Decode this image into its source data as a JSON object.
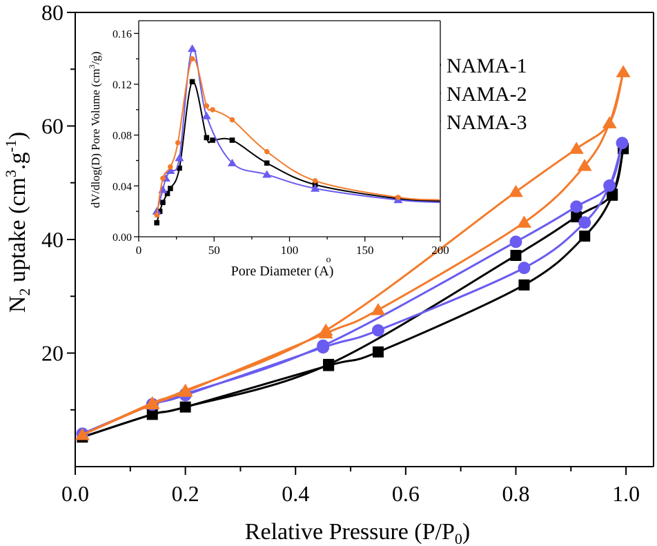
{
  "chart_data": [
    {
      "type": "line",
      "role": "main",
      "xlabel": "Relative Pressure (P/P",
      "xlabel_sub": "0",
      "xlabel_end": ")",
      "ylabel": {
        "pre": "N",
        "sub": "2",
        "mid": " uptake (cm",
        "sup1": "3",
        "mid2": ".g",
        "sup2": "-1",
        "post": ")"
      },
      "xlim": [
        0.0,
        1.05
      ],
      "ylim": [
        0,
        80
      ],
      "xticks": [
        "0.0",
        "0.2",
        "0.4",
        "0.6",
        "0.8",
        "1.0"
      ],
      "yticks": [
        "20",
        "40",
        "60",
        "80"
      ],
      "legend_position": "top-right",
      "series": [
        {
          "name": "NAMA-1",
          "color": "#000000",
          "marker": "square",
          "adsorption": [
            [
              0.013,
              5.2
            ],
            [
              0.14,
              9.2
            ],
            [
              0.2,
              10.5
            ],
            [
              0.46,
              18.0
            ],
            [
              0.8,
              37.2
            ],
            [
              0.91,
              44.0
            ],
            [
              0.975,
              48.0
            ],
            [
              0.995,
              56.0
            ]
          ],
          "desorption": [
            [
              0.995,
              56.0
            ],
            [
              0.975,
              47.8
            ],
            [
              0.925,
              40.6
            ],
            [
              0.815,
              32.0
            ],
            [
              0.55,
              20.2
            ],
            [
              0.46,
              17.8
            ],
            [
              0.2,
              10.5
            ],
            [
              0.14,
              9.2
            ],
            [
              0.013,
              5.2
            ]
          ]
        },
        {
          "name": "NAMA-2",
          "color": "#6a5cf0",
          "marker": "circle",
          "adsorption": [
            [
              0.013,
              5.8
            ],
            [
              0.14,
              11.0
            ],
            [
              0.2,
              12.8
            ],
            [
              0.45,
              21.3
            ],
            [
              0.8,
              39.6
            ],
            [
              0.91,
              45.8
            ],
            [
              0.97,
              49.5
            ],
            [
              0.993,
              57.0
            ]
          ],
          "desorption": [
            [
              0.993,
              57.0
            ],
            [
              0.97,
              49.5
            ],
            [
              0.925,
              43.0
            ],
            [
              0.815,
              35.0
            ],
            [
              0.55,
              24.0
            ],
            [
              0.45,
              21.0
            ],
            [
              0.2,
              12.6
            ],
            [
              0.14,
              10.9
            ],
            [
              0.013,
              5.8
            ]
          ]
        },
        {
          "name": "NAMA-3",
          "color": "#f47a2a",
          "marker": "triangle",
          "adsorption": [
            [
              0.013,
              5.6
            ],
            [
              0.14,
              11.2
            ],
            [
              0.2,
              13.4
            ],
            [
              0.455,
              24.0
            ],
            [
              0.8,
              48.4
            ],
            [
              0.91,
              56.0
            ],
            [
              0.97,
              60.5
            ],
            [
              0.995,
              69.5
            ]
          ],
          "desorption": [
            [
              0.995,
              69.5
            ],
            [
              0.97,
              60.5
            ],
            [
              0.925,
              53.0
            ],
            [
              0.815,
              43.0
            ],
            [
              0.55,
              27.6
            ],
            [
              0.455,
              23.5
            ],
            [
              0.2,
              13.2
            ],
            [
              0.14,
              11.0
            ],
            [
              0.013,
              5.6
            ]
          ]
        }
      ]
    },
    {
      "type": "line",
      "role": "inset",
      "xlabel": "Pore Diameter (A)",
      "xlabel_accent": "o",
      "ylabel": "dV/dlog(D) Pore Volume (cm",
      "ylabel_sup": "3",
      "ylabel_end": "/g)",
      "xlim": [
        0,
        200
      ],
      "ylim": [
        0,
        0.17
      ],
      "xticks": [
        "0",
        "50",
        "100",
        "150",
        "200"
      ],
      "yticks": [
        "0.00",
        "0.04",
        "0.08",
        "0.12",
        "0.16"
      ],
      "series": [
        {
          "name": "NAMA-1",
          "color": "#000000",
          "marker": "square",
          "points": [
            [
              12,
              0.011
            ],
            [
              14,
              0.02
            ],
            [
              16,
              0.027
            ],
            [
              19,
              0.034
            ],
            [
              21,
              0.038
            ],
            [
              27,
              0.054
            ],
            [
              35.5,
              0.122
            ],
            [
              45,
              0.078
            ],
            [
              49,
              0.076
            ],
            [
              62,
              0.076
            ],
            [
              85,
              0.058
            ],
            [
              117,
              0.041
            ],
            [
              172,
              0.03
            ],
            [
              200,
              0.028
            ]
          ]
        },
        {
          "name": "NAMA-2",
          "color": "#6a5cf0",
          "marker": "triangle",
          "points": [
            [
              12,
              0.02
            ],
            [
              16,
              0.037
            ],
            [
              18,
              0.046
            ],
            [
              21,
              0.052
            ],
            [
              27,
              0.062
            ],
            [
              35.5,
              0.148
            ],
            [
              45,
              0.095
            ],
            [
              62,
              0.058
            ],
            [
              85,
              0.049
            ],
            [
              117,
              0.038
            ],
            [
              172,
              0.029
            ],
            [
              200,
              0.027
            ]
          ]
        },
        {
          "name": "NAMA-3",
          "color": "#f47a2a",
          "marker": "circle",
          "points": [
            [
              12,
              0.017
            ],
            [
              16,
              0.046
            ],
            [
              21,
              0.055
            ],
            [
              26,
              0.074
            ],
            [
              35.5,
              0.14
            ],
            [
              45,
              0.103
            ],
            [
              49,
              0.1
            ],
            [
              62,
              0.092
            ],
            [
              85,
              0.067
            ],
            [
              117,
              0.044
            ],
            [
              172,
              0.031
            ],
            [
              200,
              0.029
            ]
          ]
        }
      ]
    }
  ]
}
